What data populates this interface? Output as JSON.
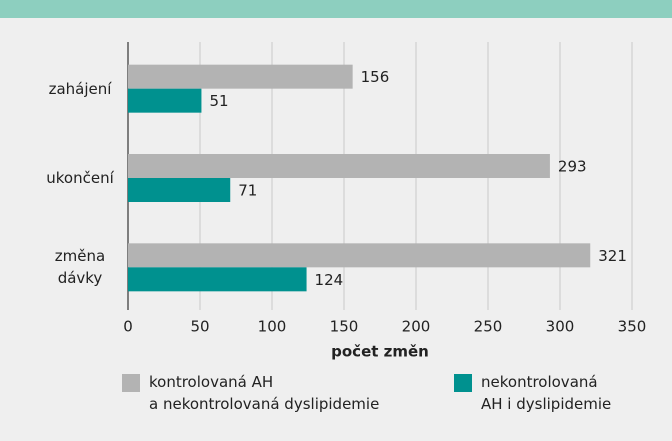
{
  "chart_data": {
    "type": "bar",
    "orientation": "horizontal",
    "categories": [
      "zahájení",
      "ukončení",
      "změna\ndávky"
    ],
    "series": [
      {
        "name": "kontrolovaná AH\na nekontrolovaná dyslipidemie",
        "color": "#b3b3b3",
        "values": [
          156,
          293,
          321
        ]
      },
      {
        "name": "nekontrolovaná\nAH i dyslipidemie",
        "color": "#00918f",
        "values": [
          51,
          71,
          124
        ]
      }
    ],
    "xlabel": "počet změn",
    "xlim": [
      0,
      350
    ],
    "xticks": [
      0,
      50,
      100,
      150,
      200,
      250,
      300,
      350
    ],
    "grid": true
  }
}
